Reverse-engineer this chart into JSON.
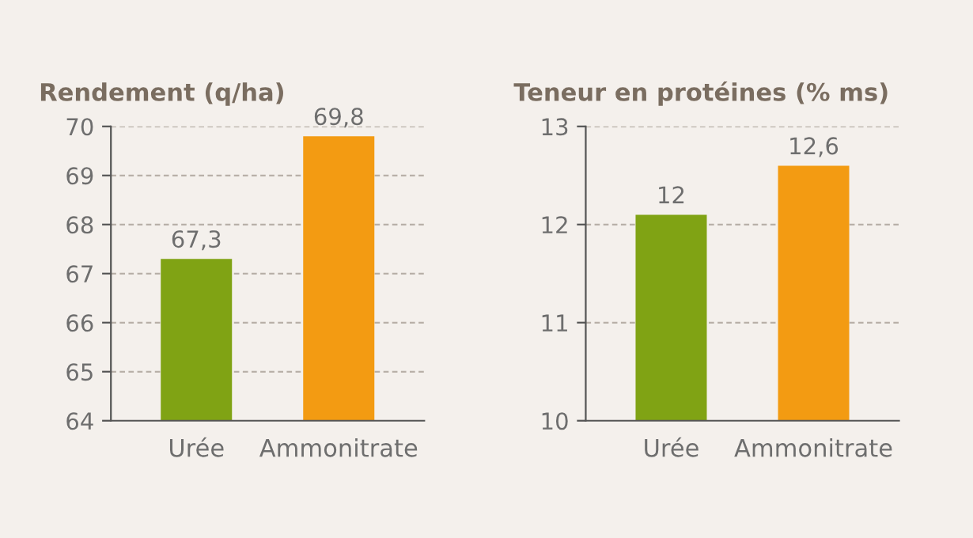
{
  "chart_data": [
    {
      "type": "bar",
      "title": "Rendement (q/ha)",
      "categories": [
        "Urée",
        "Ammonitrate"
      ],
      "values": [
        67.3,
        69.8
      ],
      "colors": [
        "#80a314",
        "#f39b12"
      ],
      "value_labels": [
        "67,3",
        "69,8"
      ],
      "ylim": [
        64,
        70
      ],
      "yticks": [
        64,
        65,
        66,
        67,
        68,
        69,
        70
      ],
      "grid": "y",
      "legend": false
    },
    {
      "type": "bar",
      "title": "Teneur en protéines (% ms)",
      "categories": [
        "Urée",
        "Ammonitrate"
      ],
      "values": [
        12.1,
        12.6
      ],
      "colors": [
        "#80a314",
        "#f39b12"
      ],
      "value_labels": [
        "12",
        "12,6"
      ],
      "ylim": [
        10,
        13
      ],
      "yticks": [
        10,
        11,
        12,
        13
      ],
      "grid": "y",
      "legend": false
    }
  ]
}
